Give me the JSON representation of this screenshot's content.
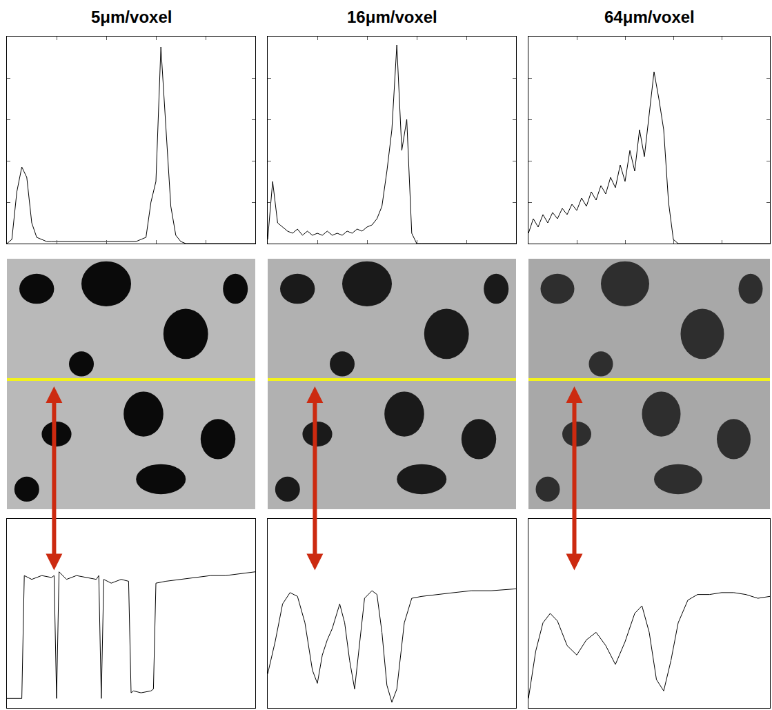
{
  "chart_data": [
    {
      "type": "line",
      "title": "5μm/voxel",
      "color": "#000000",
      "tick_labels": false,
      "x": [
        0,
        2,
        4,
        6,
        8,
        10,
        12,
        14,
        16,
        18,
        20,
        22,
        24,
        26,
        28,
        30,
        32,
        34,
        36,
        38,
        40,
        42,
        44,
        46,
        48,
        50,
        52,
        54,
        56,
        58,
        60,
        62,
        64,
        66,
        68,
        70,
        72,
        74,
        76,
        78,
        80,
        82,
        84,
        86,
        88,
        90,
        92,
        94,
        96,
        98,
        100
      ],
      "values": [
        0.0,
        0.02,
        0.25,
        0.37,
        0.32,
        0.1,
        0.03,
        0.02,
        0.01,
        0.01,
        0.01,
        0.01,
        0.01,
        0.01,
        0.01,
        0.01,
        0.01,
        0.01,
        0.01,
        0.01,
        0.01,
        0.01,
        0.01,
        0.01,
        0.01,
        0.01,
        0.01,
        0.02,
        0.03,
        0.2,
        0.3,
        0.95,
        0.56,
        0.18,
        0.04,
        0.01,
        0,
        0,
        0,
        0,
        0,
        0,
        0,
        0,
        0,
        0,
        0,
        0,
        0,
        0,
        0
      ],
      "xlim": [
        0,
        100
      ],
      "ylim": [
        0,
        1
      ],
      "xticks": [
        0,
        20,
        40,
        60,
        80,
        100
      ],
      "yticks": [
        0,
        0.2,
        0.4,
        0.6,
        0.8,
        1
      ]
    },
    {
      "type": "line",
      "title": "16μm/voxel",
      "color": "#000000",
      "tick_labels": false,
      "x": [
        0,
        2,
        4,
        6,
        8,
        10,
        12,
        14,
        16,
        18,
        20,
        22,
        24,
        26,
        28,
        30,
        32,
        34,
        36,
        38,
        40,
        42,
        44,
        46,
        48,
        50,
        52,
        54,
        56,
        58,
        60,
        62,
        64,
        66,
        68,
        70,
        72,
        74,
        76,
        78,
        80,
        82,
        84,
        86,
        88,
        90,
        92,
        94,
        96,
        98,
        100
      ],
      "values": [
        0.02,
        0.3,
        0.1,
        0.08,
        0.06,
        0.05,
        0.07,
        0.04,
        0.06,
        0.04,
        0.05,
        0.04,
        0.06,
        0.04,
        0.05,
        0.04,
        0.06,
        0.05,
        0.07,
        0.06,
        0.08,
        0.09,
        0.12,
        0.18,
        0.35,
        0.55,
        0.96,
        0.45,
        0.6,
        0.05,
        0,
        0,
        0,
        0,
        0,
        0,
        0,
        0,
        0,
        0,
        0,
        0,
        0,
        0,
        0,
        0,
        0,
        0,
        0,
        0,
        0
      ],
      "xlim": [
        0,
        100
      ],
      "ylim": [
        0,
        1
      ],
      "xticks": [
        0,
        20,
        40,
        60,
        80,
        100
      ],
      "yticks": [
        0,
        0.2,
        0.4,
        0.6,
        0.8,
        1
      ]
    },
    {
      "type": "line",
      "title": "64μm/voxel",
      "color": "#000000",
      "tick_labels": false,
      "x": [
        0,
        2,
        4,
        6,
        8,
        10,
        12,
        14,
        16,
        18,
        20,
        22,
        24,
        26,
        28,
        30,
        32,
        34,
        36,
        38,
        40,
        42,
        44,
        46,
        48,
        50,
        52,
        54,
        56,
        58,
        60,
        62,
        64,
        66,
        68,
        70,
        72,
        74,
        76,
        78,
        80,
        82,
        84,
        86,
        88,
        90,
        92,
        94,
        96,
        98,
        100
      ],
      "values": [
        0.05,
        0.12,
        0.08,
        0.14,
        0.1,
        0.15,
        0.12,
        0.17,
        0.14,
        0.19,
        0.16,
        0.22,
        0.18,
        0.25,
        0.21,
        0.28,
        0.24,
        0.32,
        0.27,
        0.38,
        0.3,
        0.45,
        0.35,
        0.55,
        0.42,
        0.63,
        0.83,
        0.7,
        0.55,
        0.2,
        0.02,
        0,
        0,
        0,
        0,
        0,
        0,
        0,
        0,
        0,
        0,
        0,
        0,
        0,
        0,
        0,
        0,
        0,
        0,
        0,
        0
      ],
      "xlim": [
        0,
        100
      ],
      "ylim": [
        0,
        1
      ],
      "xticks": [
        0,
        20,
        40,
        60,
        80,
        100
      ],
      "yticks": [
        0,
        0.2,
        0.4,
        0.6,
        0.8,
        1
      ]
    },
    {
      "type": "line",
      "color": "#000000",
      "tick_labels": false,
      "x": [
        0,
        6,
        7,
        10,
        14,
        18,
        19,
        20,
        21,
        24,
        28,
        32,
        36,
        37,
        38,
        39,
        42,
        46,
        49,
        50,
        51,
        54,
        58,
        59,
        60,
        64,
        70,
        76,
        82,
        88,
        94,
        100
      ],
      "values": [
        0.05,
        0.05,
        0.7,
        0.68,
        0.7,
        0.69,
        0.7,
        0.05,
        0.72,
        0.68,
        0.7,
        0.69,
        0.68,
        0.7,
        0.05,
        0.68,
        0.66,
        0.68,
        0.67,
        0.08,
        0.09,
        0.08,
        0.09,
        0.1,
        0.66,
        0.67,
        0.68,
        0.69,
        0.7,
        0.7,
        0.71,
        0.72
      ],
      "xlim": [
        0,
        100
      ],
      "ylim": [
        0,
        1
      ]
    },
    {
      "type": "line",
      "color": "#000000",
      "tick_labels": false,
      "x": [
        0,
        3,
        6,
        9,
        12,
        15,
        18,
        20,
        22,
        24,
        26,
        29,
        31,
        33,
        35,
        37,
        39,
        42,
        44,
        46,
        48,
        50,
        52,
        55,
        58,
        62,
        68,
        75,
        82,
        90,
        100
      ],
      "values": [
        0.18,
        0.35,
        0.55,
        0.61,
        0.59,
        0.45,
        0.2,
        0.13,
        0.28,
        0.36,
        0.42,
        0.55,
        0.45,
        0.25,
        0.1,
        0.35,
        0.58,
        0.62,
        0.6,
        0.4,
        0.12,
        0.03,
        0.1,
        0.45,
        0.58,
        0.59,
        0.6,
        0.61,
        0.62,
        0.62,
        0.63
      ],
      "xlim": [
        0,
        100
      ],
      "ylim": [
        0,
        1
      ]
    },
    {
      "type": "line",
      "color": "#000000",
      "tick_labels": false,
      "x": [
        0,
        3,
        6,
        9,
        12,
        16,
        20,
        24,
        28,
        32,
        36,
        40,
        44,
        47,
        50,
        53,
        56,
        59,
        62,
        66,
        70,
        75,
        80,
        85,
        90,
        95,
        100
      ],
      "values": [
        0.05,
        0.3,
        0.45,
        0.5,
        0.46,
        0.33,
        0.28,
        0.36,
        0.4,
        0.33,
        0.23,
        0.35,
        0.5,
        0.54,
        0.4,
        0.15,
        0.09,
        0.25,
        0.45,
        0.57,
        0.6,
        0.6,
        0.61,
        0.61,
        0.6,
        0.58,
        0.59
      ],
      "xlim": [
        0,
        100
      ],
      "ylim": [
        0,
        1
      ]
    }
  ]
}
